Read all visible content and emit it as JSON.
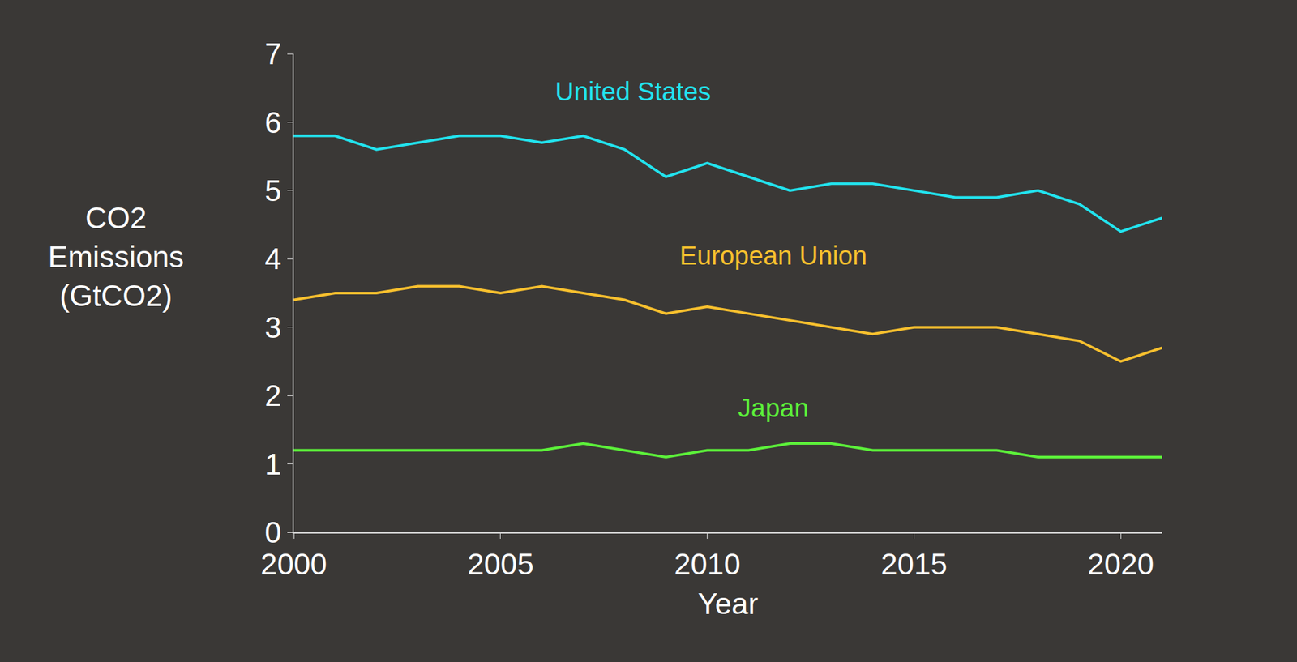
{
  "chart_data": {
    "type": "line",
    "xlabel": "Year",
    "ylabel": "CO2\nEmissions\n(GtCO2)",
    "x": [
      2000,
      2001,
      2002,
      2003,
      2004,
      2005,
      2006,
      2007,
      2008,
      2009,
      2010,
      2011,
      2012,
      2013,
      2014,
      2015,
      2016,
      2017,
      2018,
      2019,
      2020,
      2021
    ],
    "series": [
      {
        "name": "United States",
        "color": "#22e3ee",
        "values": [
          5.8,
          5.8,
          5.6,
          5.7,
          5.8,
          5.8,
          5.7,
          5.8,
          5.6,
          5.2,
          5.4,
          5.2,
          5.0,
          5.1,
          5.1,
          5.0,
          4.9,
          4.9,
          5.0,
          4.8,
          4.4,
          4.6
        ]
      },
      {
        "name": "European Union",
        "color": "#f7c02e",
        "values": [
          3.4,
          3.5,
          3.5,
          3.6,
          3.6,
          3.5,
          3.6,
          3.5,
          3.4,
          3.2,
          3.3,
          3.2,
          3.1,
          3.0,
          2.9,
          3.0,
          3.0,
          3.0,
          2.9,
          2.8,
          2.5,
          2.7
        ]
      },
      {
        "name": "Japan",
        "color": "#5cf03a",
        "values": [
          1.2,
          1.2,
          1.2,
          1.2,
          1.2,
          1.2,
          1.2,
          1.3,
          1.2,
          1.1,
          1.2,
          1.2,
          1.3,
          1.3,
          1.2,
          1.2,
          1.2,
          1.2,
          1.1,
          1.1,
          1.1,
          1.1
        ]
      }
    ],
    "xlim": [
      2000,
      2021
    ],
    "xticks": [
      2000,
      2005,
      2010,
      2015,
      2020
    ],
    "ylim": [
      0,
      7
    ],
    "yticks": [
      0,
      1,
      2,
      3,
      4,
      5,
      6,
      7
    ],
    "grid": false
  }
}
